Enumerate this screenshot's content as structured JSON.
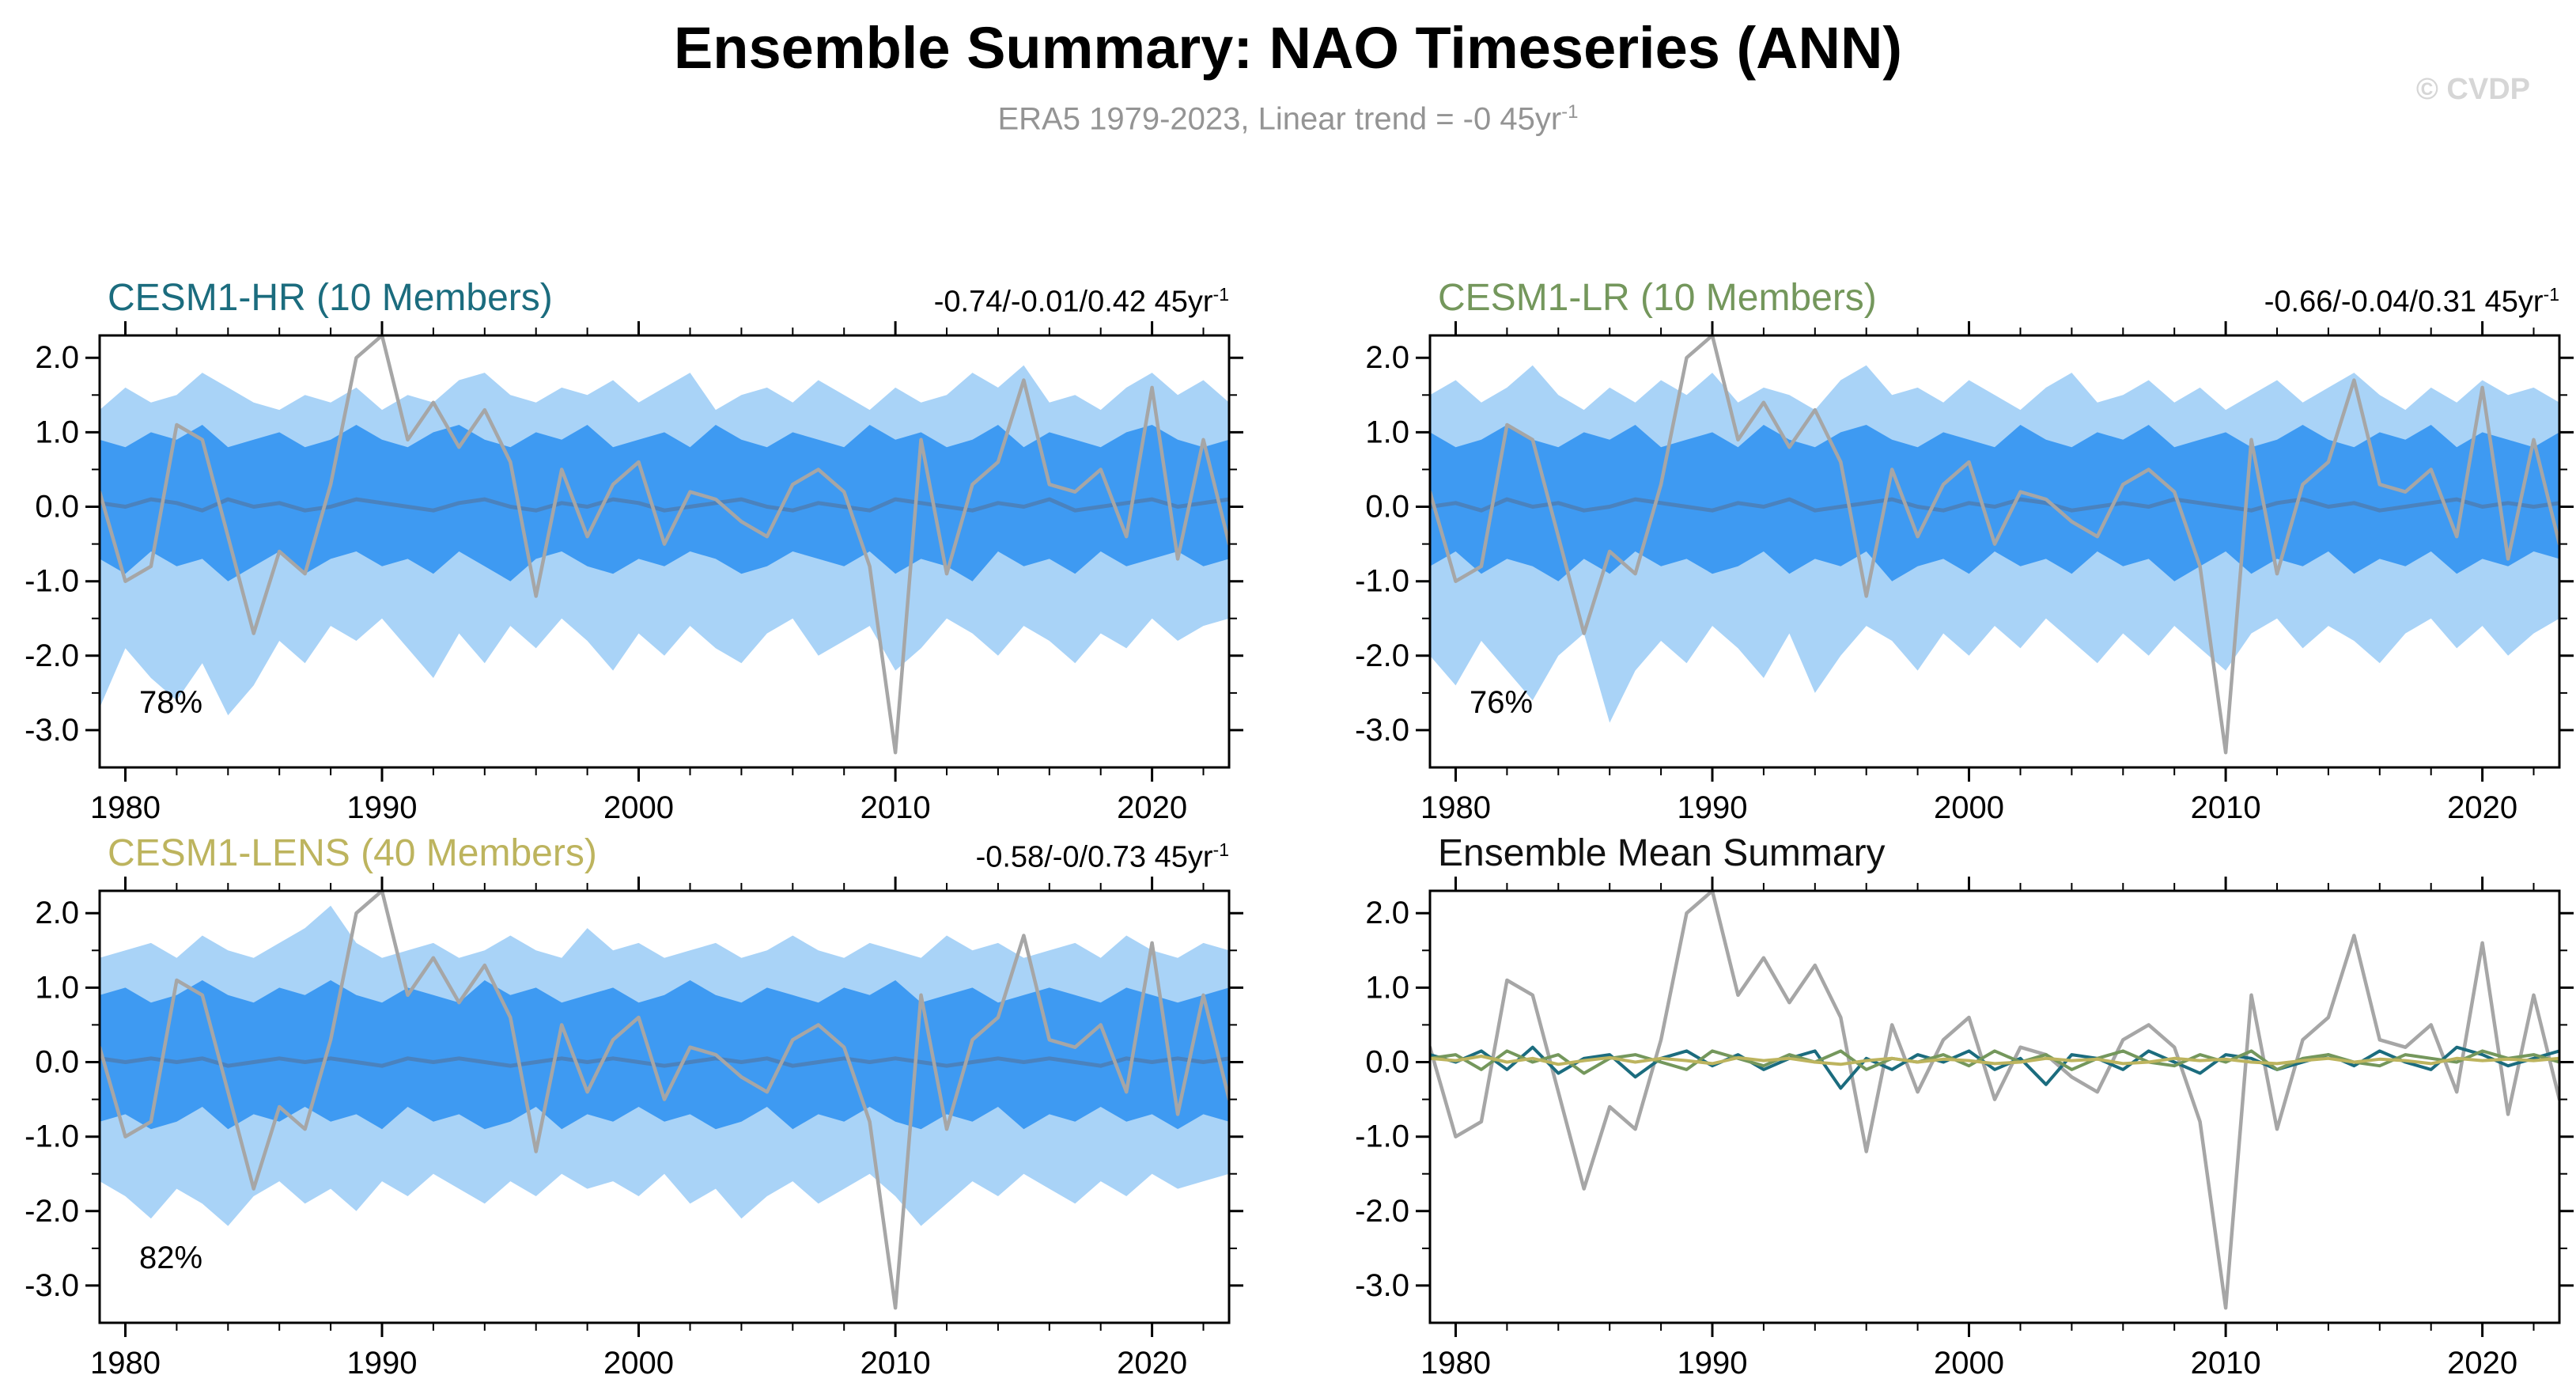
{
  "chart_data": {
    "type": "line",
    "title": "Ensemble Summary: NAO Timeseries (ANN)",
    "subtitle": "ERA5 1979-2023, Linear trend = -0 45yr",
    "subtitle_superscript": "-1",
    "watermark": "© CVDP",
    "xlim": [
      1979,
      2023
    ],
    "ylim": [
      -3.5,
      2.3
    ],
    "xtick_values": [
      1980,
      1990,
      2000,
      2010,
      2020
    ],
    "xtick_labels": [
      "1980",
      "1990",
      "2000",
      "2010",
      "2020"
    ],
    "x_minor_step": 2,
    "ytick_values": [
      2,
      1,
      0,
      -1,
      -2,
      -3
    ],
    "ytick_labels": [
      "2.0",
      "1.0",
      "0.0",
      "-1.0",
      "-2.0",
      "-3.0"
    ],
    "y_minor_step": 0.5,
    "grid": false,
    "legend_position": "none",
    "colors": {
      "outer_band": "#A9D3F7",
      "inner_band": "#3E9AF2",
      "mean_line": "#4A82BE",
      "observation": "#A6A6A6",
      "axis": "#000000",
      "cesm1_hr": "#1B6C7E",
      "cesm1_lr": "#74975C",
      "cesm1_lens": "#BDB45E"
    },
    "years": [
      1979,
      1980,
      1981,
      1982,
      1983,
      1984,
      1985,
      1986,
      1987,
      1988,
      1989,
      1990,
      1991,
      1992,
      1993,
      1994,
      1995,
      1996,
      1997,
      1998,
      1999,
      2000,
      2001,
      2002,
      2003,
      2004,
      2005,
      2006,
      2007,
      2008,
      2009,
      2010,
      2011,
      2012,
      2013,
      2014,
      2015,
      2016,
      2017,
      2018,
      2019,
      2020,
      2021,
      2022,
      2023
    ],
    "observation": {
      "name": "ERA5",
      "color": "#A6A6A6",
      "values": [
        0.2,
        -1.0,
        -0.8,
        1.1,
        0.9,
        -0.4,
        -1.7,
        -0.6,
        -0.9,
        0.3,
        2.0,
        2.3,
        0.9,
        1.4,
        0.8,
        1.3,
        0.6,
        -1.2,
        0.5,
        -0.4,
        0.3,
        0.6,
        -0.5,
        0.2,
        0.1,
        -0.2,
        -0.4,
        0.3,
        0.5,
        0.2,
        -0.8,
        -3.3,
        0.9,
        -0.9,
        0.3,
        0.6,
        1.7,
        0.3,
        0.2,
        0.5,
        -0.4,
        1.6,
        -0.7,
        0.9,
        -0.5
      ]
    },
    "panels": [
      {
        "id": "cesm1-hr",
        "title": "CESM1-HR (10 Members)",
        "title_color": "#1B6C7E",
        "trend": "-0.74/-0.01/0.42 45yr",
        "trend_superscript": "-1",
        "agreement": "78%",
        "outer_max": [
          1.3,
          1.6,
          1.4,
          1.5,
          1.8,
          1.6,
          1.4,
          1.3,
          1.5,
          1.4,
          1.6,
          1.3,
          1.5,
          1.4,
          1.7,
          1.8,
          1.5,
          1.4,
          1.6,
          1.5,
          1.7,
          1.4,
          1.6,
          1.8,
          1.3,
          1.5,
          1.6,
          1.4,
          1.7,
          1.5,
          1.3,
          1.6,
          1.4,
          1.5,
          1.8,
          1.6,
          1.9,
          1.4,
          1.5,
          1.3,
          1.6,
          1.8,
          1.5,
          1.7,
          1.4
        ],
        "outer_min": [
          -2.7,
          -1.9,
          -2.3,
          -2.6,
          -2.1,
          -2.8,
          -2.4,
          -1.8,
          -2.1,
          -1.6,
          -1.8,
          -1.5,
          -1.9,
          -2.3,
          -1.7,
          -2.1,
          -1.6,
          -1.9,
          -1.5,
          -1.8,
          -2.2,
          -1.7,
          -2.0,
          -1.6,
          -1.9,
          -2.1,
          -1.7,
          -1.5,
          -2.0,
          -1.8,
          -1.6,
          -2.2,
          -1.9,
          -1.5,
          -1.7,
          -2.0,
          -1.6,
          -1.8,
          -2.1,
          -1.7,
          -1.9,
          -1.5,
          -1.8,
          -1.6,
          -1.5
        ],
        "inner_max": [
          0.9,
          0.8,
          1.0,
          0.9,
          1.1,
          0.8,
          0.9,
          1.0,
          0.8,
          0.9,
          1.1,
          0.9,
          0.8,
          1.0,
          1.1,
          0.9,
          0.8,
          1.0,
          0.9,
          1.1,
          0.8,
          0.9,
          1.0,
          0.8,
          1.1,
          0.9,
          0.8,
          1.0,
          0.9,
          0.8,
          1.1,
          0.9,
          1.0,
          0.8,
          0.9,
          1.1,
          0.8,
          1.0,
          0.9,
          0.8,
          1.0,
          1.1,
          0.9,
          0.8,
          0.9
        ],
        "inner_min": [
          -0.7,
          -0.9,
          -0.6,
          -0.8,
          -0.7,
          -1.0,
          -0.8,
          -0.6,
          -0.9,
          -0.7,
          -0.6,
          -0.8,
          -0.7,
          -0.9,
          -0.6,
          -0.8,
          -1.0,
          -0.7,
          -0.6,
          -0.8,
          -0.9,
          -0.7,
          -0.8,
          -0.6,
          -0.7,
          -0.9,
          -0.8,
          -0.6,
          -0.7,
          -0.8,
          -0.6,
          -0.9,
          -0.7,
          -0.8,
          -1.0,
          -0.6,
          -0.8,
          -0.7,
          -0.9,
          -0.6,
          -0.8,
          -0.7,
          -0.6,
          -0.8,
          -0.7
        ],
        "mean": [
          0.05,
          0.0,
          0.1,
          0.05,
          -0.05,
          0.1,
          0.0,
          0.05,
          -0.05,
          0.0,
          0.1,
          0.05,
          0.0,
          -0.05,
          0.05,
          0.1,
          0.0,
          -0.05,
          0.05,
          0.0,
          0.1,
          0.05,
          -0.05,
          0.0,
          0.05,
          0.1,
          0.0,
          -0.05,
          0.05,
          0.0,
          -0.05,
          0.1,
          0.05,
          0.0,
          -0.05,
          0.05,
          0.0,
          0.1,
          -0.05,
          0.0,
          0.05,
          0.1,
          0.0,
          0.05,
          0.1
        ]
      },
      {
        "id": "cesm1-lr",
        "title": "CESM1-LR (10 Members)",
        "title_color": "#74975C",
        "trend": "-0.66/-0.04/0.31 45yr",
        "trend_superscript": "-1",
        "agreement": "76%",
        "outer_max": [
          1.5,
          1.7,
          1.4,
          1.6,
          1.9,
          1.5,
          1.3,
          1.6,
          1.4,
          1.7,
          1.5,
          1.8,
          1.4,
          1.6,
          1.5,
          1.3,
          1.7,
          1.9,
          1.5,
          1.6,
          1.4,
          1.7,
          1.5,
          1.3,
          1.6,
          1.8,
          1.4,
          1.5,
          1.7,
          1.4,
          1.6,
          1.3,
          1.5,
          1.7,
          1.4,
          1.6,
          1.8,
          1.5,
          1.3,
          1.6,
          1.4,
          1.7,
          1.5,
          1.6,
          1.4
        ],
        "outer_min": [
          -2.0,
          -2.4,
          -1.8,
          -2.2,
          -2.6,
          -2.0,
          -1.7,
          -2.9,
          -2.2,
          -1.8,
          -2.1,
          -1.6,
          -1.9,
          -2.3,
          -1.7,
          -2.5,
          -2.0,
          -1.6,
          -1.8,
          -2.2,
          -1.7,
          -2.0,
          -1.6,
          -1.9,
          -1.5,
          -1.8,
          -2.1,
          -1.7,
          -2.0,
          -1.6,
          -1.9,
          -2.2,
          -1.7,
          -1.5,
          -1.9,
          -1.6,
          -1.8,
          -2.1,
          -1.7,
          -1.5,
          -1.9,
          -1.6,
          -2.0,
          -1.7,
          -1.5
        ],
        "inner_max": [
          1.0,
          0.8,
          0.9,
          1.1,
          0.9,
          0.8,
          1.0,
          0.9,
          1.1,
          0.8,
          0.9,
          1.0,
          0.8,
          1.1,
          0.9,
          0.8,
          1.0,
          1.1,
          0.9,
          0.8,
          1.0,
          0.9,
          0.8,
          1.1,
          0.9,
          0.8,
          1.0,
          0.9,
          1.1,
          0.8,
          0.9,
          1.0,
          0.8,
          0.9,
          1.1,
          0.9,
          0.8,
          1.0,
          0.9,
          1.1,
          0.8,
          1.0,
          0.9,
          0.8,
          1.0
        ],
        "inner_min": [
          -0.8,
          -0.6,
          -0.9,
          -0.7,
          -0.8,
          -1.0,
          -0.7,
          -0.9,
          -0.6,
          -0.8,
          -0.7,
          -0.9,
          -0.8,
          -0.6,
          -0.9,
          -0.7,
          -0.8,
          -0.6,
          -1.0,
          -0.8,
          -0.7,
          -0.9,
          -0.6,
          -0.8,
          -0.7,
          -0.9,
          -0.6,
          -0.8,
          -0.7,
          -1.0,
          -0.8,
          -0.6,
          -0.9,
          -0.7,
          -0.8,
          -0.6,
          -0.9,
          -0.7,
          -0.8,
          -0.6,
          -0.9,
          -0.7,
          -0.8,
          -0.6,
          -0.7
        ],
        "mean": [
          0.0,
          0.05,
          -0.05,
          0.1,
          0.0,
          0.05,
          -0.05,
          0.0,
          0.1,
          0.05,
          0.0,
          -0.05,
          0.05,
          0.0,
          0.1,
          -0.05,
          0.0,
          0.05,
          0.1,
          0.0,
          -0.05,
          0.05,
          0.0,
          0.1,
          0.05,
          -0.05,
          0.0,
          0.05,
          0.0,
          0.1,
          0.05,
          0.0,
          -0.05,
          0.05,
          0.1,
          0.0,
          0.05,
          -0.05,
          0.0,
          0.05,
          0.1,
          0.0,
          0.05,
          0.0,
          0.05
        ]
      },
      {
        "id": "cesm1-lens",
        "title": "CESM1-LENS (40 Members)",
        "title_color": "#BDB45E",
        "trend": "-0.58/-0/0.73 45yr",
        "trend_superscript": "-1",
        "agreement": "82%",
        "outer_max": [
          1.4,
          1.5,
          1.6,
          1.4,
          1.7,
          1.5,
          1.4,
          1.6,
          1.8,
          2.1,
          1.6,
          1.4,
          1.5,
          1.6,
          1.4,
          1.5,
          1.7,
          1.5,
          1.4,
          1.8,
          1.5,
          1.6,
          1.4,
          1.5,
          1.6,
          1.4,
          1.5,
          1.7,
          1.5,
          1.4,
          1.6,
          1.5,
          1.4,
          1.7,
          1.5,
          1.6,
          1.4,
          1.5,
          1.6,
          1.4,
          1.7,
          1.5,
          1.4,
          1.6,
          1.5
        ],
        "outer_min": [
          -1.6,
          -1.8,
          -2.1,
          -1.7,
          -1.9,
          -2.2,
          -1.8,
          -1.6,
          -1.9,
          -1.7,
          -2.0,
          -1.6,
          -1.8,
          -1.5,
          -1.7,
          -1.9,
          -1.6,
          -1.8,
          -1.5,
          -1.7,
          -1.6,
          -1.8,
          -1.5,
          -1.9,
          -1.7,
          -2.1,
          -1.8,
          -1.6,
          -1.9,
          -1.7,
          -1.5,
          -1.8,
          -2.2,
          -1.9,
          -1.6,
          -1.8,
          -1.5,
          -1.7,
          -1.9,
          -1.6,
          -1.8,
          -1.5,
          -1.7,
          -1.6,
          -1.5
        ],
        "inner_max": [
          0.9,
          1.0,
          0.8,
          0.9,
          1.1,
          0.9,
          0.8,
          1.0,
          0.9,
          1.1,
          0.9,
          0.8,
          1.0,
          0.9,
          0.8,
          1.1,
          0.9,
          1.0,
          0.8,
          0.9,
          1.0,
          0.8,
          0.9,
          1.1,
          0.9,
          0.8,
          1.0,
          0.9,
          0.8,
          1.0,
          0.9,
          1.1,
          0.8,
          0.9,
          1.0,
          0.8,
          0.9,
          1.0,
          0.9,
          0.8,
          1.0,
          0.9,
          0.8,
          0.9,
          1.0
        ],
        "inner_min": [
          -0.8,
          -0.7,
          -0.9,
          -0.8,
          -0.6,
          -0.9,
          -0.7,
          -0.8,
          -0.6,
          -0.8,
          -0.7,
          -0.9,
          -0.6,
          -0.8,
          -0.7,
          -0.9,
          -0.8,
          -0.6,
          -0.9,
          -0.7,
          -0.8,
          -0.6,
          -0.8,
          -0.7,
          -0.9,
          -0.8,
          -0.6,
          -0.9,
          -0.7,
          -0.8,
          -0.6,
          -0.8,
          -0.9,
          -0.7,
          -0.8,
          -0.6,
          -0.9,
          -0.7,
          -0.8,
          -0.6,
          -0.8,
          -0.7,
          -0.9,
          -0.7,
          -0.8
        ],
        "mean": [
          0.05,
          0.0,
          0.05,
          0.0,
          0.05,
          -0.05,
          0.0,
          0.05,
          0.0,
          0.05,
          0.0,
          -0.05,
          0.05,
          0.0,
          0.05,
          0.0,
          -0.05,
          0.0,
          0.05,
          0.0,
          0.05,
          0.0,
          -0.05,
          0.0,
          0.05,
          0.0,
          0.05,
          -0.05,
          0.0,
          0.05,
          0.0,
          0.05,
          0.0,
          -0.05,
          0.0,
          0.05,
          0.0,
          0.05,
          0.0,
          -0.05,
          0.05,
          0.0,
          0.05,
          0.0,
          0.05
        ]
      },
      {
        "id": "summary",
        "title": "Ensemble Mean Summary",
        "title_color": "#111111",
        "series": [
          {
            "name": "CESM1-HR",
            "color": "#1B6C7E",
            "values": [
              0.1,
              0.0,
              0.15,
              -0.1,
              0.2,
              -0.15,
              0.05,
              0.1,
              -0.2,
              0.05,
              0.15,
              -0.05,
              0.1,
              -0.1,
              0.05,
              0.15,
              -0.35,
              0.05,
              -0.1,
              0.1,
              0.0,
              0.15,
              -0.1,
              0.05,
              -0.3,
              0.1,
              0.05,
              -0.1,
              0.15,
              0.0,
              -0.15,
              0.1,
              0.05,
              -0.1,
              0.0,
              0.1,
              -0.05,
              0.15,
              0.0,
              -0.1,
              0.2,
              0.1,
              -0.05,
              0.05,
              0.15
            ]
          },
          {
            "name": "CESM1-LR",
            "color": "#74975C",
            "values": [
              0.05,
              0.1,
              -0.1,
              0.15,
              0.0,
              0.1,
              -0.15,
              0.05,
              0.1,
              0.0,
              -0.1,
              0.15,
              0.05,
              -0.05,
              0.1,
              0.0,
              0.15,
              -0.1,
              0.05,
              0.0,
              0.1,
              -0.05,
              0.15,
              0.0,
              0.1,
              -0.1,
              0.05,
              0.15,
              0.0,
              -0.05,
              0.1,
              0.0,
              0.15,
              -0.1,
              0.05,
              0.1,
              0.0,
              -0.05,
              0.1,
              0.05,
              0.0,
              0.15,
              0.05,
              0.1,
              0.0
            ]
          },
          {
            "name": "CESM1-LENS",
            "color": "#BDB45E",
            "values": [
              0.05,
              0.02,
              0.08,
              0.0,
              0.05,
              -0.03,
              0.02,
              0.06,
              0.0,
              0.05,
              0.02,
              -0.02,
              0.06,
              0.02,
              0.05,
              0.0,
              -0.03,
              0.02,
              0.05,
              0.0,
              0.04,
              0.02,
              -0.02,
              0.0,
              0.05,
              0.02,
              0.04,
              -0.02,
              0.0,
              0.05,
              0.02,
              0.04,
              0.0,
              -0.02,
              0.02,
              0.05,
              0.0,
              0.04,
              0.02,
              -0.02,
              0.05,
              0.02,
              0.04,
              0.02,
              0.05
            ]
          }
        ]
      }
    ]
  }
}
